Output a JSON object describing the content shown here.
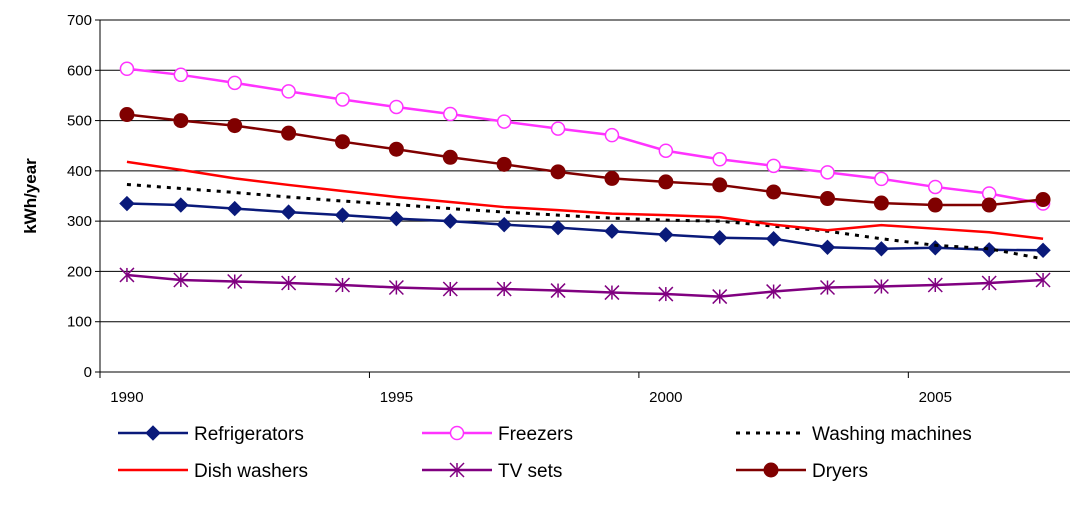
{
  "chart_data": {
    "type": "line",
    "ylabel": "kWh/year",
    "xlabel": "",
    "title": "",
    "x": [
      1990,
      1991,
      1992,
      1993,
      1994,
      1995,
      1996,
      1997,
      1998,
      1999,
      2000,
      2001,
      2002,
      2003,
      2004,
      2005,
      2006,
      2007
    ],
    "xlim": [
      1990,
      2007
    ],
    "ylim": [
      0,
      700
    ],
    "x_ticks": [
      "1990",
      "1995",
      "2000",
      "2005"
    ],
    "y_ticks": [
      "0",
      "100",
      "200",
      "300",
      "400",
      "500",
      "600",
      "700"
    ],
    "grid": "horizontal",
    "legend_position": "bottom",
    "series": [
      {
        "name": "Refrigerators",
        "color": "#0a1a7a",
        "marker": "diamond",
        "values": [
          335,
          332,
          325,
          318,
          312,
          305,
          300,
          293,
          287,
          280,
          273,
          267,
          265,
          248,
          245,
          247,
          243,
          242
        ]
      },
      {
        "name": "Freezers",
        "color": "#ff33ff",
        "marker": "open-circle",
        "values": [
          603,
          591,
          575,
          558,
          542,
          527,
          513,
          498,
          484,
          471,
          440,
          423,
          410,
          397,
          384,
          368,
          355,
          335
        ]
      },
      {
        "name": "Washing machines",
        "color": "#000000",
        "marker": "none",
        "dash": true,
        "values": [
          373,
          365,
          357,
          348,
          340,
          333,
          325,
          318,
          312,
          306,
          302,
          300,
          290,
          280,
          265,
          252,
          245,
          225
        ]
      },
      {
        "name": "Dish washers",
        "color": "#ff0000",
        "marker": "none",
        "values": [
          418,
          402,
          385,
          372,
          360,
          348,
          338,
          328,
          322,
          315,
          312,
          308,
          293,
          282,
          292,
          285,
          278,
          265
        ]
      },
      {
        "name": "TV sets",
        "color": "#800080",
        "marker": "asterisk",
        "values": [
          193,
          183,
          180,
          177,
          173,
          168,
          165,
          165,
          162,
          158,
          155,
          150,
          160,
          168,
          170,
          173,
          177,
          183
        ]
      },
      {
        "name": "Dryers",
        "color": "#800000",
        "marker": "filled-circle",
        "values": [
          512,
          500,
          490,
          475,
          458,
          443,
          427,
          413,
          398,
          385,
          378,
          372,
          358,
          345,
          336,
          332,
          332,
          343
        ]
      }
    ]
  }
}
